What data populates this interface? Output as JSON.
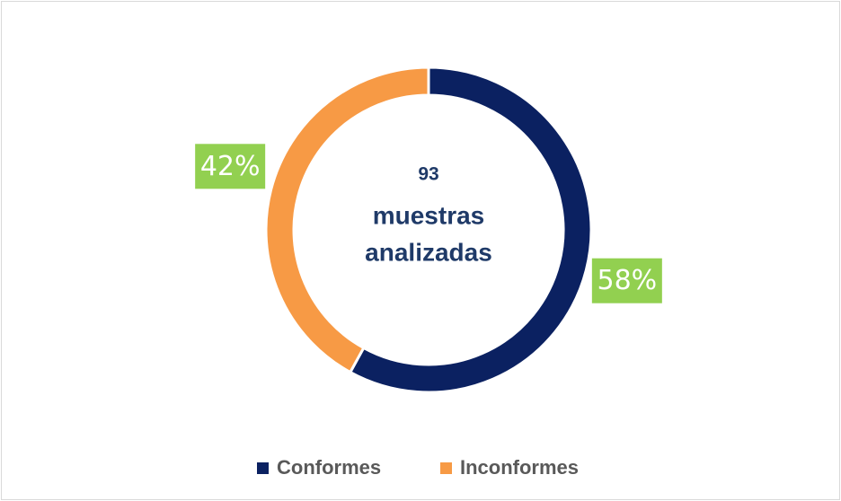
{
  "chart_data": {
    "type": "donut",
    "categories": [
      "Conformes",
      "Inconformes"
    ],
    "values": [
      58,
      42
    ],
    "value_labels": [
      "58%",
      "42%"
    ],
    "colors": [
      "#0b2161",
      "#f79a45"
    ],
    "center_text": [
      "93",
      "muestras",
      "analizadas"
    ],
    "legend": "bottom"
  }
}
